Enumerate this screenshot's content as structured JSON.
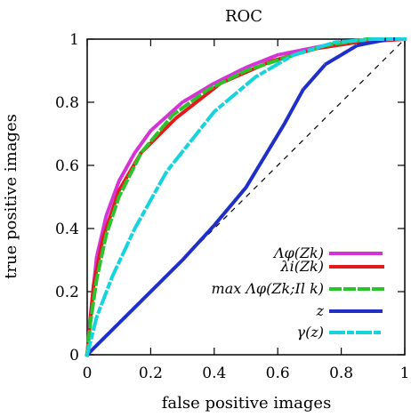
{
  "chart_data": {
    "type": "line",
    "title": "ROC",
    "xlabel": "false positive images",
    "ylabel": "true positive images",
    "xlim": [
      0,
      1
    ],
    "ylim": [
      0,
      1
    ],
    "x_ticks": [
      0,
      0.2,
      0.4,
      0.6,
      0.8,
      1
    ],
    "y_ticks": [
      0,
      0.2,
      0.4,
      0.6,
      0.8,
      1
    ],
    "x_tick_labels": [
      "0",
      "0.2",
      "0.4",
      "0.6",
      "0.8",
      "1"
    ],
    "y_tick_labels": [
      "0",
      "0.2",
      "0.4",
      "0.6",
      "0.8",
      "1"
    ],
    "grid": false,
    "legend_position": "bottom-right",
    "reference_line": {
      "x": [
        0,
        1
      ],
      "y": [
        0,
        1
      ]
    },
    "series": [
      {
        "name": "Λφ(Zk)",
        "color": "#d633d6",
        "style": "dotted",
        "points": [
          [
            0,
            0
          ],
          [
            0.01,
            0.12
          ],
          [
            0.03,
            0.31
          ],
          [
            0.06,
            0.44
          ],
          [
            0.1,
            0.55
          ],
          [
            0.15,
            0.64
          ],
          [
            0.2,
            0.71
          ],
          [
            0.3,
            0.8
          ],
          [
            0.4,
            0.86
          ],
          [
            0.5,
            0.91
          ],
          [
            0.6,
            0.95
          ],
          [
            0.7,
            0.97
          ],
          [
            0.8,
            0.99
          ],
          [
            0.9,
            1
          ],
          [
            1,
            1
          ]
        ]
      },
      {
        "name": "λi(Zk)",
        "color": "#e31a1c",
        "style": "solid",
        "points": [
          [
            0,
            0
          ],
          [
            0.02,
            0.22
          ],
          [
            0.05,
            0.37
          ],
          [
            0.1,
            0.52
          ],
          [
            0.17,
            0.64
          ],
          [
            0.28,
            0.75
          ],
          [
            0.42,
            0.86
          ],
          [
            0.58,
            0.93
          ],
          [
            0.72,
            0.97
          ],
          [
            0.85,
            0.99
          ],
          [
            1,
            1
          ]
        ]
      },
      {
        "name": "max Λφ(Zk;Il k)",
        "color": "#2ac42a",
        "style": "dashed",
        "points": [
          [
            0,
            0
          ],
          [
            0.01,
            0.1
          ],
          [
            0.03,
            0.24
          ],
          [
            0.06,
            0.38
          ],
          [
            0.1,
            0.5
          ],
          [
            0.17,
            0.64
          ],
          [
            0.27,
            0.76
          ],
          [
            0.38,
            0.84
          ],
          [
            0.5,
            0.9
          ],
          [
            0.62,
            0.94
          ],
          [
            0.75,
            0.98
          ],
          [
            0.88,
            1
          ],
          [
            1,
            1
          ]
        ]
      },
      {
        "name": "z",
        "color": "#1f2fc8",
        "style": "dotted",
        "points": [
          [
            0,
            0
          ],
          [
            0.1,
            0.1
          ],
          [
            0.2,
            0.2
          ],
          [
            0.3,
            0.3
          ],
          [
            0.4,
            0.41
          ],
          [
            0.5,
            0.53
          ],
          [
            0.56,
            0.63
          ],
          [
            0.62,
            0.73
          ],
          [
            0.68,
            0.84
          ],
          [
            0.75,
            0.92
          ],
          [
            0.85,
            0.98
          ],
          [
            0.95,
            1
          ],
          [
            1,
            1
          ]
        ]
      },
      {
        "name": "γ(z)",
        "color": "#17d4dc",
        "style": "dashdot",
        "points": [
          [
            0,
            0
          ],
          [
            0.03,
            0.12
          ],
          [
            0.08,
            0.25
          ],
          [
            0.15,
            0.4
          ],
          [
            0.25,
            0.58
          ],
          [
            0.4,
            0.77
          ],
          [
            0.53,
            0.88
          ],
          [
            0.65,
            0.95
          ],
          [
            0.78,
            0.99
          ],
          [
            0.9,
            1
          ],
          [
            1,
            1
          ]
        ]
      }
    ]
  }
}
